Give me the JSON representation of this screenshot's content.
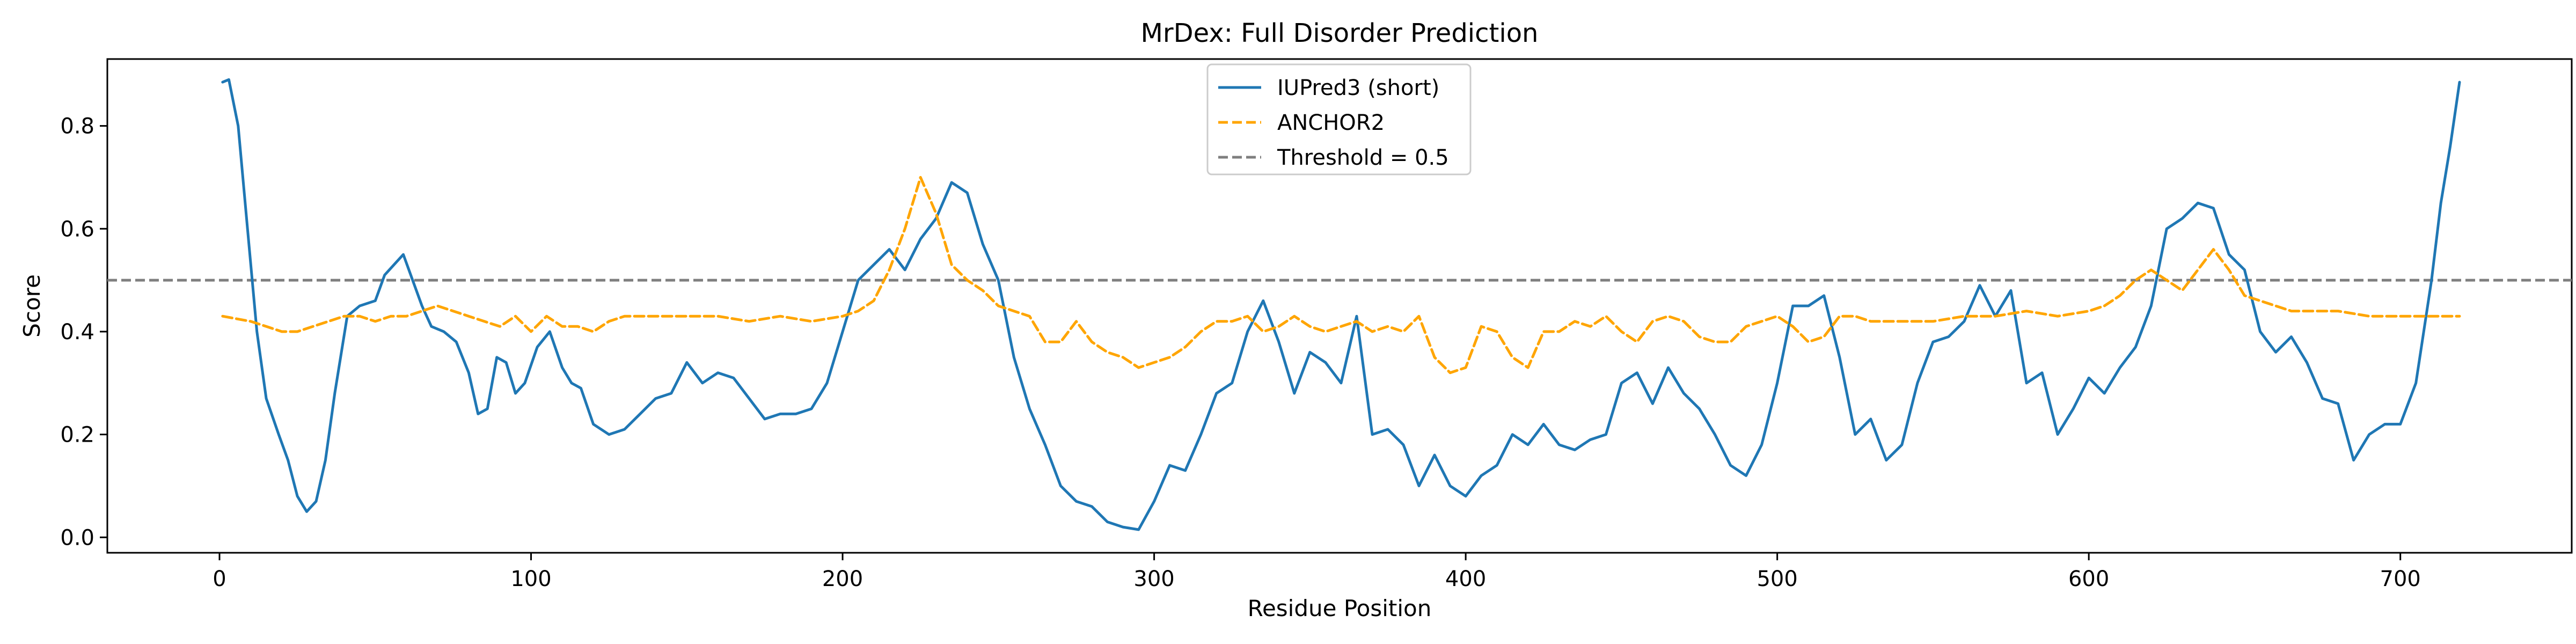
{
  "chart_data": {
    "type": "line",
    "title": "MrDex: Full Disorder Prediction",
    "xlabel": "Residue Position",
    "ylabel": "Score",
    "xlim": [
      -36,
      755
    ],
    "ylim": [
      -0.03,
      0.93
    ],
    "xticks": [
      0,
      100,
      200,
      300,
      400,
      500,
      600,
      700
    ],
    "yticks": [
      0.0,
      0.2,
      0.4,
      0.6,
      0.8
    ],
    "grid": false,
    "legend_position": "top-center",
    "threshold": {
      "name": "Threshold = 0.5",
      "value": 0.5,
      "color": "#7f7f7f",
      "style": "dashed"
    },
    "series": [
      {
        "name": "IUPred3 (short)",
        "color": "#1f77b4",
        "style": "solid",
        "x": [
          1,
          3,
          6,
          9,
          12,
          15,
          19,
          22,
          25,
          28,
          31,
          34,
          37,
          41,
          45,
          50,
          53,
          56,
          59,
          62,
          65,
          68,
          72,
          76,
          80,
          83,
          86,
          89,
          92,
          95,
          98,
          102,
          106,
          110,
          113,
          116,
          120,
          125,
          130,
          135,
          140,
          145,
          150,
          155,
          160,
          165,
          170,
          175,
          180,
          185,
          190,
          195,
          200,
          205,
          210,
          215,
          220,
          225,
          230,
          235,
          240,
          245,
          250,
          255,
          260,
          265,
          270,
          275,
          280,
          285,
          290,
          295,
          300,
          305,
          310,
          315,
          320,
          325,
          330,
          335,
          340,
          345,
          350,
          355,
          360,
          365,
          370,
          375,
          380,
          385,
          390,
          395,
          400,
          405,
          410,
          415,
          420,
          425,
          430,
          435,
          440,
          445,
          450,
          455,
          460,
          465,
          470,
          475,
          480,
          485,
          490,
          495,
          500,
          505,
          510,
          515,
          520,
          525,
          530,
          535,
          540,
          545,
          550,
          555,
          560,
          565,
          570,
          575,
          580,
          585,
          590,
          595,
          600,
          605,
          610,
          615,
          620,
          625,
          630,
          635,
          640,
          645,
          650,
          655,
          660,
          665,
          670,
          675,
          680,
          685,
          690,
          695,
          700,
          705,
          710,
          713,
          716,
          719
        ],
        "y": [
          0.885,
          0.89,
          0.8,
          0.6,
          0.4,
          0.27,
          0.2,
          0.15,
          0.08,
          0.05,
          0.07,
          0.15,
          0.28,
          0.43,
          0.45,
          0.46,
          0.51,
          0.53,
          0.55,
          0.5,
          0.45,
          0.41,
          0.4,
          0.38,
          0.32,
          0.24,
          0.25,
          0.35,
          0.34,
          0.28,
          0.3,
          0.37,
          0.4,
          0.33,
          0.3,
          0.29,
          0.22,
          0.2,
          0.21,
          0.24,
          0.27,
          0.28,
          0.34,
          0.3,
          0.32,
          0.31,
          0.27,
          0.23,
          0.24,
          0.24,
          0.25,
          0.3,
          0.4,
          0.5,
          0.53,
          0.56,
          0.52,
          0.58,
          0.62,
          0.69,
          0.67,
          0.57,
          0.5,
          0.35,
          0.25,
          0.18,
          0.1,
          0.07,
          0.06,
          0.03,
          0.02,
          0.015,
          0.07,
          0.14,
          0.13,
          0.2,
          0.28,
          0.3,
          0.4,
          0.46,
          0.38,
          0.28,
          0.36,
          0.34,
          0.3,
          0.43,
          0.2,
          0.21,
          0.18,
          0.1,
          0.16,
          0.1,
          0.08,
          0.12,
          0.14,
          0.2,
          0.18,
          0.22,
          0.18,
          0.17,
          0.19,
          0.2,
          0.3,
          0.32,
          0.26,
          0.33,
          0.28,
          0.25,
          0.2,
          0.14,
          0.12,
          0.18,
          0.3,
          0.45,
          0.45,
          0.47,
          0.35,
          0.2,
          0.23,
          0.15,
          0.18,
          0.3,
          0.38,
          0.39,
          0.42,
          0.49,
          0.43,
          0.48,
          0.3,
          0.32,
          0.2,
          0.25,
          0.31,
          0.28,
          0.33,
          0.37,
          0.45,
          0.6,
          0.62,
          0.65,
          0.64,
          0.55,
          0.52,
          0.4,
          0.36,
          0.39,
          0.34,
          0.27,
          0.26,
          0.15,
          0.2,
          0.22,
          0.22,
          0.3,
          0.5,
          0.65,
          0.76,
          0.885
        ]
      },
      {
        "name": "ANCHOR2",
        "color": "#ffa500",
        "style": "dashed",
        "x": [
          1,
          10,
          15,
          20,
          25,
          30,
          35,
          40,
          45,
          50,
          55,
          60,
          65,
          70,
          75,
          80,
          85,
          90,
          95,
          100,
          105,
          110,
          115,
          120,
          125,
          130,
          135,
          140,
          150,
          160,
          170,
          180,
          190,
          200,
          205,
          210,
          215,
          220,
          225,
          230,
          235,
          240,
          245,
          250,
          255,
          260,
          265,
          270,
          275,
          280,
          285,
          290,
          295,
          300,
          305,
          310,
          315,
          320,
          325,
          330,
          335,
          340,
          345,
          350,
          355,
          360,
          365,
          370,
          375,
          380,
          385,
          390,
          395,
          400,
          405,
          410,
          415,
          420,
          425,
          430,
          435,
          440,
          445,
          450,
          455,
          460,
          465,
          470,
          475,
          480,
          485,
          490,
          495,
          500,
          505,
          510,
          515,
          520,
          525,
          530,
          540,
          550,
          560,
          570,
          580,
          590,
          600,
          605,
          610,
          615,
          620,
          625,
          630,
          635,
          640,
          645,
          650,
          655,
          660,
          665,
          670,
          680,
          690,
          700,
          710,
          719
        ],
        "y": [
          0.43,
          0.42,
          0.41,
          0.4,
          0.4,
          0.41,
          0.42,
          0.43,
          0.43,
          0.42,
          0.43,
          0.43,
          0.44,
          0.45,
          0.44,
          0.43,
          0.42,
          0.41,
          0.43,
          0.4,
          0.43,
          0.41,
          0.41,
          0.4,
          0.42,
          0.43,
          0.43,
          0.43,
          0.43,
          0.43,
          0.42,
          0.43,
          0.42,
          0.43,
          0.44,
          0.46,
          0.52,
          0.6,
          0.7,
          0.63,
          0.53,
          0.5,
          0.48,
          0.45,
          0.44,
          0.43,
          0.38,
          0.38,
          0.42,
          0.38,
          0.36,
          0.35,
          0.33,
          0.34,
          0.35,
          0.37,
          0.4,
          0.42,
          0.42,
          0.43,
          0.4,
          0.41,
          0.43,
          0.41,
          0.4,
          0.41,
          0.42,
          0.4,
          0.41,
          0.4,
          0.43,
          0.35,
          0.32,
          0.33,
          0.41,
          0.4,
          0.35,
          0.33,
          0.4,
          0.4,
          0.42,
          0.41,
          0.43,
          0.4,
          0.38,
          0.42,
          0.43,
          0.42,
          0.39,
          0.38,
          0.38,
          0.41,
          0.42,
          0.43,
          0.41,
          0.38,
          0.39,
          0.43,
          0.43,
          0.42,
          0.42,
          0.42,
          0.43,
          0.43,
          0.44,
          0.43,
          0.44,
          0.45,
          0.47,
          0.5,
          0.52,
          0.5,
          0.48,
          0.52,
          0.56,
          0.52,
          0.47,
          0.46,
          0.45,
          0.44,
          0.44,
          0.44,
          0.43,
          0.43,
          0.43,
          0.43
        ]
      }
    ]
  }
}
